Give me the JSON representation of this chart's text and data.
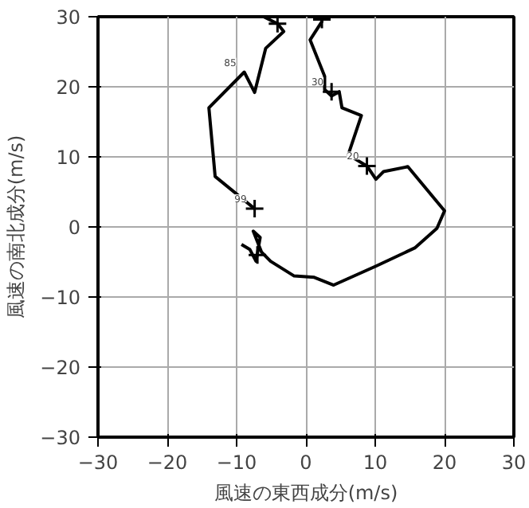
{
  "chart_data": {
    "type": "line",
    "xlabel": "風速の東西成分(m/s)",
    "ylabel": "風速の南北成分(m/s)",
    "xlim": [
      -30,
      30
    ],
    "ylim": [
      -30,
      30
    ],
    "xticks": [
      -30,
      -20,
      -10,
      0,
      10,
      20,
      30
    ],
    "yticks": [
      -30,
      -20,
      -10,
      0,
      10,
      20,
      30
    ],
    "grid": true,
    "series": [
      {
        "color": "#000000",
        "x": [
          -7.4,
          -13.1,
          -14.0,
          -8.9,
          -7.4,
          -5.8,
          -3.2,
          -4.1,
          -6.1
        ],
        "values": [
          2.6,
          7.2,
          17.0,
          22.1,
          19.2,
          25.5,
          27.9,
          29.0,
          30
        ]
      },
      {
        "color": "#000000",
        "x": [
          2.3,
          2.3,
          0.6,
          2.7,
          2.7,
          3.7,
          4.8,
          5.2,
          8.0,
          6.1,
          8.8,
          10.1,
          11.2,
          14.7,
          20.0,
          18.9,
          15.7,
          10.1,
          4.0,
          1.2,
          -1.7,
          -5.1,
          -6.4,
          -7.6,
          -6.6,
          -7.2,
          -8.1,
          -9.3
        ],
        "values": [
          30,
          29.3,
          26.7,
          21.5,
          19.6,
          18.7,
          19.3,
          17.0,
          15.9,
          10.3,
          8.7,
          6.8,
          7.9,
          8.6,
          2.3,
          -0.2,
          -3.0,
          -5.6,
          -8.3,
          -7.2,
          -7.0,
          -4.9,
          -3.6,
          -0.6,
          -1.5,
          -4.9,
          -3.2,
          -2.5
        ]
      },
      {
        "type": "scatter",
        "marker": "cross",
        "color": "#000000",
        "x": [
          -7.4,
          -4.1,
          3.7,
          8.8,
          -7.0,
          2.3
        ],
        "values": [
          2.6,
          29.0,
          19.3,
          8.7,
          -4.0,
          29.6
        ]
      }
    ],
    "annotations": [
      {
        "text": "99",
        "x": -7.4,
        "y": 2.6
      },
      {
        "text": "85",
        "x": -8.9,
        "y": 22.1
      },
      {
        "text": "30",
        "x": 3.7,
        "y": 19.3
      },
      {
        "text": "20",
        "x": 8.8,
        "y": 8.7
      }
    ]
  }
}
